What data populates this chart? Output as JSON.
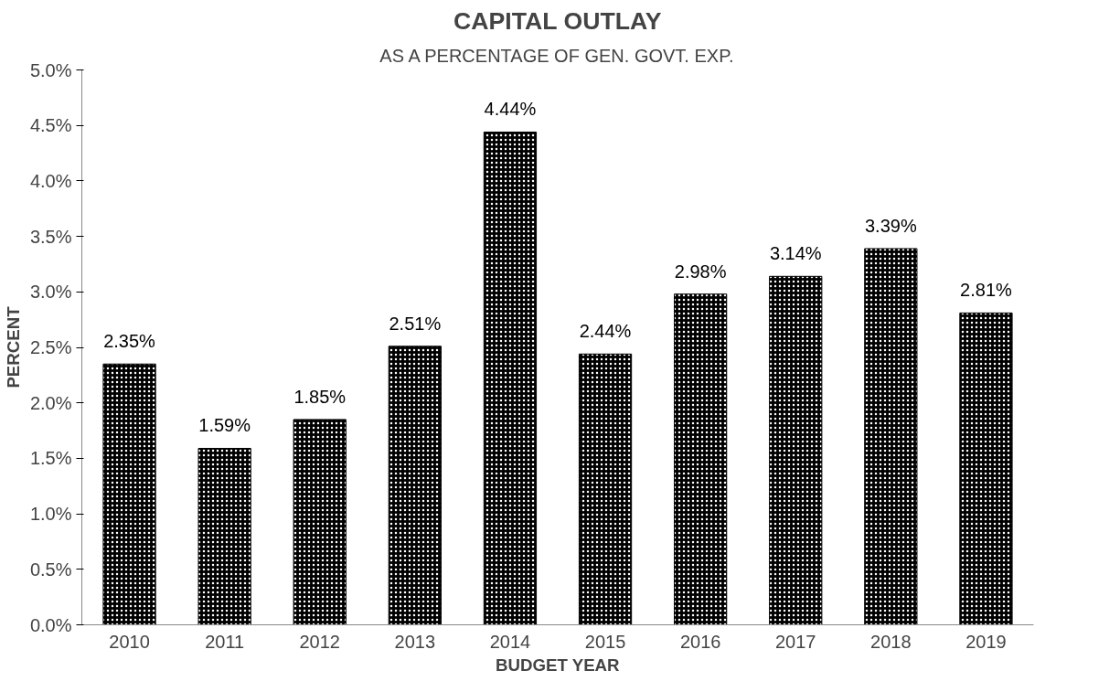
{
  "chart_data": {
    "type": "bar",
    "title": "CAPITAL OUTLAY",
    "subtitle": "AS A PERCENTAGE OF GEN. GOVT. EXP.",
    "xlabel": "BUDGET YEAR",
    "ylabel": "PERCENT",
    "categories": [
      "2010",
      "2011",
      "2012",
      "2013",
      "2014",
      "2015",
      "2016",
      "2017",
      "2018",
      "2019"
    ],
    "values": [
      2.35,
      1.59,
      1.85,
      2.51,
      4.44,
      2.44,
      2.98,
      3.14,
      3.39,
      2.81
    ],
    "value_labels": [
      "2.35%",
      "1.59%",
      "1.85%",
      "2.51%",
      "4.44%",
      "2.44%",
      "2.98%",
      "3.14%",
      "3.39%",
      "2.81%"
    ],
    "color": "#000000",
    "ylim": [
      0,
      5
    ],
    "yticks": [
      {
        "value": 0,
        "label": "0.0%"
      },
      {
        "value": 0.5,
        "label": "0.5%"
      },
      {
        "value": 1,
        "label": "1.0%"
      },
      {
        "value": 1.5,
        "label": "1.5%"
      },
      {
        "value": 2,
        "label": "2.0%"
      },
      {
        "value": 2.5,
        "label": "2.5%"
      },
      {
        "value": 3,
        "label": "3.0%"
      },
      {
        "value": 3.5,
        "label": "3.5%"
      },
      {
        "value": 4,
        "label": "4.0%"
      },
      {
        "value": 4.5,
        "label": "4.5%"
      },
      {
        "value": 5,
        "label": "5.0%"
      }
    ],
    "grid": false
  }
}
